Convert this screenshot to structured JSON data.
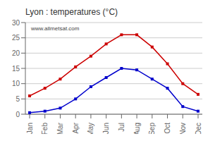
{
  "chart_data": {
    "type": "line",
    "title": "Lyon : temperatures (°C)",
    "categories": [
      "Jan",
      "Feb",
      "Mar",
      "Apr",
      "May",
      "Jun",
      "Jul",
      "Aug",
      "Sep",
      "Oct",
      "Nov",
      "Dec"
    ],
    "series": [
      {
        "color": "#cc0000",
        "marker": "square",
        "values": [
          6,
          8.5,
          11.5,
          15.5,
          19,
          23,
          26,
          26,
          22,
          16.5,
          10,
          6.5
        ]
      },
      {
        "color": "#0000cc",
        "marker": "square",
        "values": [
          0.5,
          1,
          2,
          5,
          9,
          12,
          15,
          14.5,
          11.5,
          8.5,
          2.5,
          1
        ]
      }
    ],
    "ylim": [
      0,
      30
    ],
    "yticks": [
      0,
      5,
      10,
      15,
      20,
      25,
      30
    ],
    "grid": "y",
    "annotations": [
      "www.allmetsat.com"
    ]
  }
}
